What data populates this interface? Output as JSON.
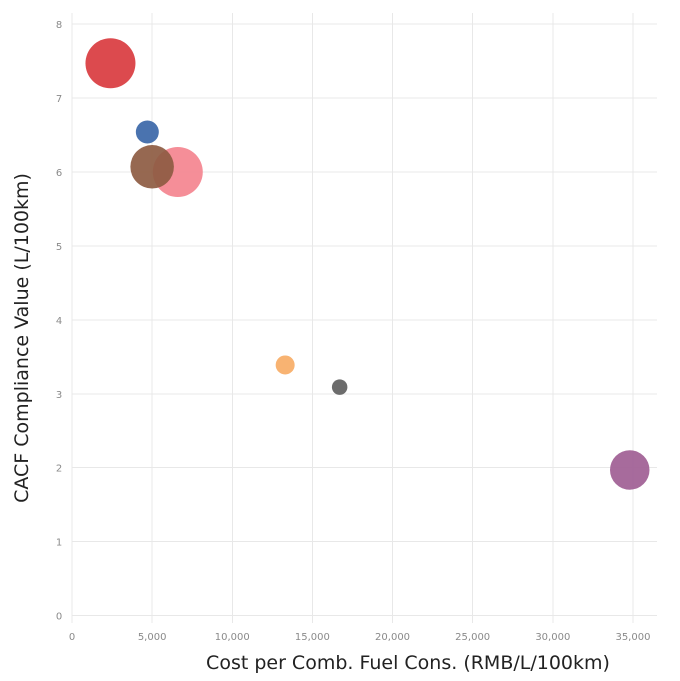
{
  "chart_data": {
    "type": "scatter",
    "title": "",
    "xlabel": "Cost per Comb. Fuel Cons. (RMB/L/100km)",
    "ylabel": "CACF Compliance Value (L/100km)",
    "xlim": [
      0,
      36500
    ],
    "ylim": [
      -0.1,
      8.15
    ],
    "x_ticks": [
      0,
      5000,
      10000,
      15000,
      20000,
      25000,
      30000,
      35000
    ],
    "x_tick_labels": [
      "0",
      "5,000",
      "10,000",
      "15,000",
      "20,000",
      "25,000",
      "30,000",
      "35,000"
    ],
    "y_ticks": [
      0,
      1,
      2,
      3,
      4,
      5,
      6,
      7,
      8
    ],
    "y_tick_labels": [
      "0",
      "1",
      "2",
      "3",
      "4",
      "5",
      "6",
      "7",
      "8"
    ],
    "grid": true,
    "legend": "none",
    "size_encoding": "relative bubble size",
    "points": [
      {
        "x": 2400,
        "y": 7.47,
        "size": 1.0,
        "color": "#d93b3f"
      },
      {
        "x": 4700,
        "y": 6.54,
        "size": 0.46,
        "color": "#3b67a8"
      },
      {
        "x": 6600,
        "y": 6.0,
        "size": 1.0,
        "color": "#f4848f"
      },
      {
        "x": 5000,
        "y": 6.07,
        "size": 0.87,
        "color": "#8d5b42"
      },
      {
        "x": 13300,
        "y": 3.39,
        "size": 0.38,
        "color": "#f7ad66"
      },
      {
        "x": 16700,
        "y": 3.09,
        "size": 0.31,
        "color": "#5f5f5f"
      },
      {
        "x": 34800,
        "y": 1.97,
        "size": 0.79,
        "color": "#a05e94"
      }
    ]
  }
}
